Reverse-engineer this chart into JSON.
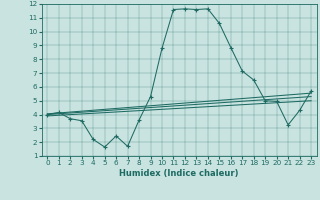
{
  "xlabel": "Humidex (Indice chaleur)",
  "xlim": [
    -0.5,
    23.5
  ],
  "ylim": [
    1,
    12
  ],
  "xticks": [
    0,
    1,
    2,
    3,
    4,
    5,
    6,
    7,
    8,
    9,
    10,
    11,
    12,
    13,
    14,
    15,
    16,
    17,
    18,
    19,
    20,
    21,
    22,
    23
  ],
  "yticks": [
    1,
    2,
    3,
    4,
    5,
    6,
    7,
    8,
    9,
    10,
    11,
    12
  ],
  "bg_color": "#c9e3e0",
  "line_color": "#1e6b63",
  "main_x": [
    0,
    1,
    2,
    3,
    4,
    5,
    6,
    7,
    8,
    9,
    10,
    11,
    12,
    13,
    14,
    15,
    16,
    17,
    18,
    19,
    20,
    21,
    22,
    23
  ],
  "main_y": [
    4.0,
    4.15,
    3.7,
    3.55,
    2.2,
    1.65,
    2.45,
    1.7,
    3.6,
    5.3,
    8.8,
    11.6,
    11.65,
    11.6,
    11.65,
    10.6,
    8.85,
    7.15,
    6.5,
    5.0,
    4.95,
    3.25,
    4.3,
    5.7
  ],
  "line1_x": [
    0,
    23
  ],
  "line1_y": [
    3.9,
    5.0
  ],
  "line2_x": [
    0,
    23
  ],
  "line2_y": [
    4.0,
    5.3
  ],
  "line3_x": [
    0,
    23
  ],
  "line3_y": [
    4.05,
    5.55
  ],
  "tick_fontsize": 5.2,
  "xlabel_fontsize": 6.0
}
